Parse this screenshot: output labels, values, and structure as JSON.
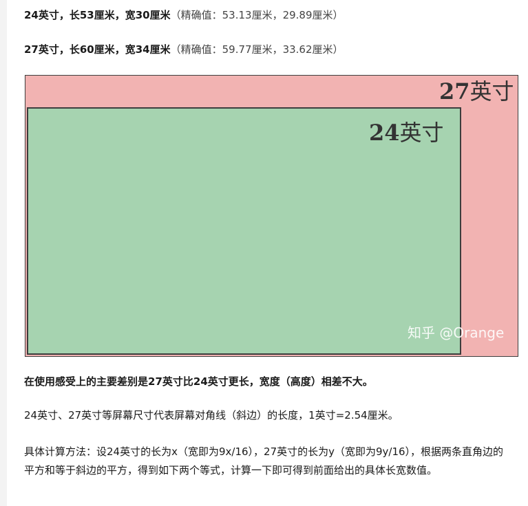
{
  "specs": [
    {
      "size": "24英寸，长53厘米，宽30厘米",
      "note": "（精确值：53.13厘米，29.89厘米）"
    },
    {
      "size": "27英寸，长60厘米，宽34厘米",
      "note": "（精确值：59.77厘米，33.62厘米）"
    }
  ],
  "figure": {
    "label_27_num": "27",
    "label_27_unit": "英寸",
    "label_24_num": "24",
    "label_24_unit": "英寸",
    "watermark": "知乎 @Orange",
    "colors": {
      "outer_fill": "#f2b3b2",
      "inner_fill": "#a6d3b0",
      "border": "#3d3d3d"
    }
  },
  "summary": "在使用感受上的主要差别是27英寸比24英寸更长，宽度（高度）相差不大。",
  "definition": "24英寸、27英寸等屏幕尺寸代表屏幕对角线（斜边）的长度，1英寸=2.54厘米。",
  "method": "具体计算方法：设24英寸的长为x（宽即为9x/16），27英寸的长为y（宽即为9y/16），根据两条直角边的平方和等于斜边的平方，得到如下两个等式，计算一下即可得到前面给出的具体长宽数值。"
}
